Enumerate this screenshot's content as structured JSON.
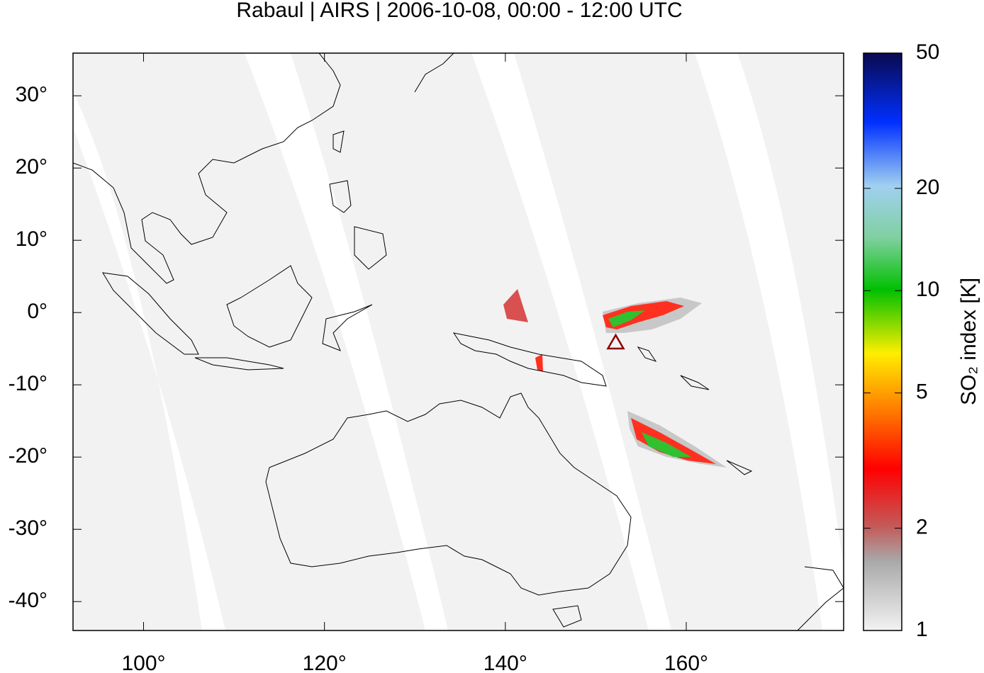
{
  "chart_data": {
    "type": "map",
    "title": "Rabaul | AIRS | 2006-10-08, 00:00 - 12:00 UTC",
    "xlim": [
      92.2,
      177.4
    ],
    "xticks": [
      {
        "value": 100,
        "label": "100°"
      },
      {
        "value": 120,
        "label": "120°"
      },
      {
        "value": 140,
        "label": "140°"
      },
      {
        "value": 160,
        "label": "160°"
      }
    ],
    "ylim": [
      -44,
      35.9
    ],
    "yticks": [
      {
        "value": 30,
        "label": "30°"
      },
      {
        "value": 20,
        "label": "20°"
      },
      {
        "value": 10,
        "label": "10°"
      },
      {
        "value": 0,
        "label": "0°"
      },
      {
        "value": -10,
        "label": "-10°"
      },
      {
        "value": -20,
        "label": "-20°"
      },
      {
        "value": -30,
        "label": "-30°"
      },
      {
        "value": -40,
        "label": "-40°"
      }
    ],
    "volcano": {
      "lon": 152.2,
      "lat": -4.2,
      "color": "#8b0000"
    },
    "colorbar": {
      "label": "SO₂ index [K]",
      "log": true,
      "lim": [
        1,
        50
      ],
      "ticks": [
        1,
        2,
        5,
        10,
        20,
        50
      ]
    }
  }
}
